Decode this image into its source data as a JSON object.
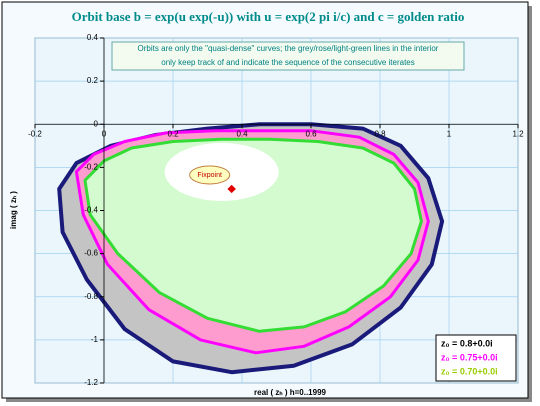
{
  "chart_data": {
    "type": "line",
    "title": "Orbit base b = exp(u exp(-u)) with u = exp(2 pi i/c) and c = golden ratio",
    "annotation_lines": [
      "Orbits are only the \"quasi-dense\" curves; the grey/rose/light-green lines in the interior",
      "only keep track of and indicate the sequence of the consecutive iterates"
    ],
    "x_label": "real ( zₕ )   h=0..1999",
    "y_label": "imag ( zₕ )",
    "xlim": [
      -0.2,
      1.2
    ],
    "ylim": [
      -1.2,
      0.4
    ],
    "xticks": [
      -0.2,
      0,
      0.2,
      0.4,
      0.6,
      0.8,
      1,
      1.2
    ],
    "yticks": [
      -1.2,
      -1,
      -0.8,
      -0.6,
      -0.4,
      -0.2,
      0,
      0.2,
      0.4
    ],
    "grid": true,
    "legend": "lower right",
    "fixpoint": {
      "text": "Fixpoint",
      "x": 0.37,
      "y": -0.3,
      "color": "#e00000"
    },
    "series": [
      {
        "name": "z₀ = 0.8+0.0i",
        "color": "#1a1a7a",
        "fill": "#c4c4c4",
        "label_color": "#000000",
        "x": [
          -0.13,
          -0.08,
          0.02,
          0.15,
          0.3,
          0.45,
          0.6,
          0.75,
          0.86,
          0.94,
          0.98,
          0.95,
          0.86,
          0.72,
          0.55,
          0.37,
          0.2,
          0.06,
          -0.05,
          -0.12
        ],
        "y": [
          -0.3,
          -0.18,
          -0.1,
          -0.05,
          -0.02,
          0.0,
          0.0,
          -0.02,
          -0.1,
          -0.25,
          -0.45,
          -0.65,
          -0.85,
          -1.02,
          -1.12,
          -1.15,
          -1.1,
          -0.95,
          -0.72,
          -0.5
        ]
      },
      {
        "name": "z₀ = 0.75+0.0i",
        "color": "#ff00ff",
        "fill": "#ff9ccf",
        "label_color": "#ff00ff",
        "x": [
          -0.08,
          -0.03,
          0.06,
          0.18,
          0.32,
          0.46,
          0.6,
          0.74,
          0.84,
          0.91,
          0.94,
          0.91,
          0.83,
          0.71,
          0.58,
          0.44,
          0.28,
          0.13,
          0.01,
          -0.06
        ],
        "y": [
          -0.22,
          -0.14,
          -0.08,
          -0.04,
          -0.03,
          -0.03,
          -0.03,
          -0.06,
          -0.14,
          -0.27,
          -0.45,
          -0.63,
          -0.8,
          -0.94,
          -1.03,
          -1.06,
          -1.0,
          -0.86,
          -0.65,
          -0.42
        ]
      },
      {
        "name": "z₀ = 0.70+0.0i",
        "color": "#33dd33",
        "fill": "#d4fad0",
        "label_color": "#99cc00",
        "x": [
          -0.055,
          0.0,
          0.08,
          0.2,
          0.34,
          0.48,
          0.62,
          0.75,
          0.84,
          0.9,
          0.92,
          0.89,
          0.81,
          0.7,
          0.58,
          0.45,
          0.3,
          0.16,
          0.04,
          -0.04
        ],
        "y": [
          -0.26,
          -0.17,
          -0.11,
          -0.08,
          -0.07,
          -0.07,
          -0.08,
          -0.11,
          -0.18,
          -0.3,
          -0.45,
          -0.6,
          -0.75,
          -0.87,
          -0.94,
          -0.96,
          -0.9,
          -0.78,
          -0.6,
          -0.42
        ]
      }
    ]
  }
}
